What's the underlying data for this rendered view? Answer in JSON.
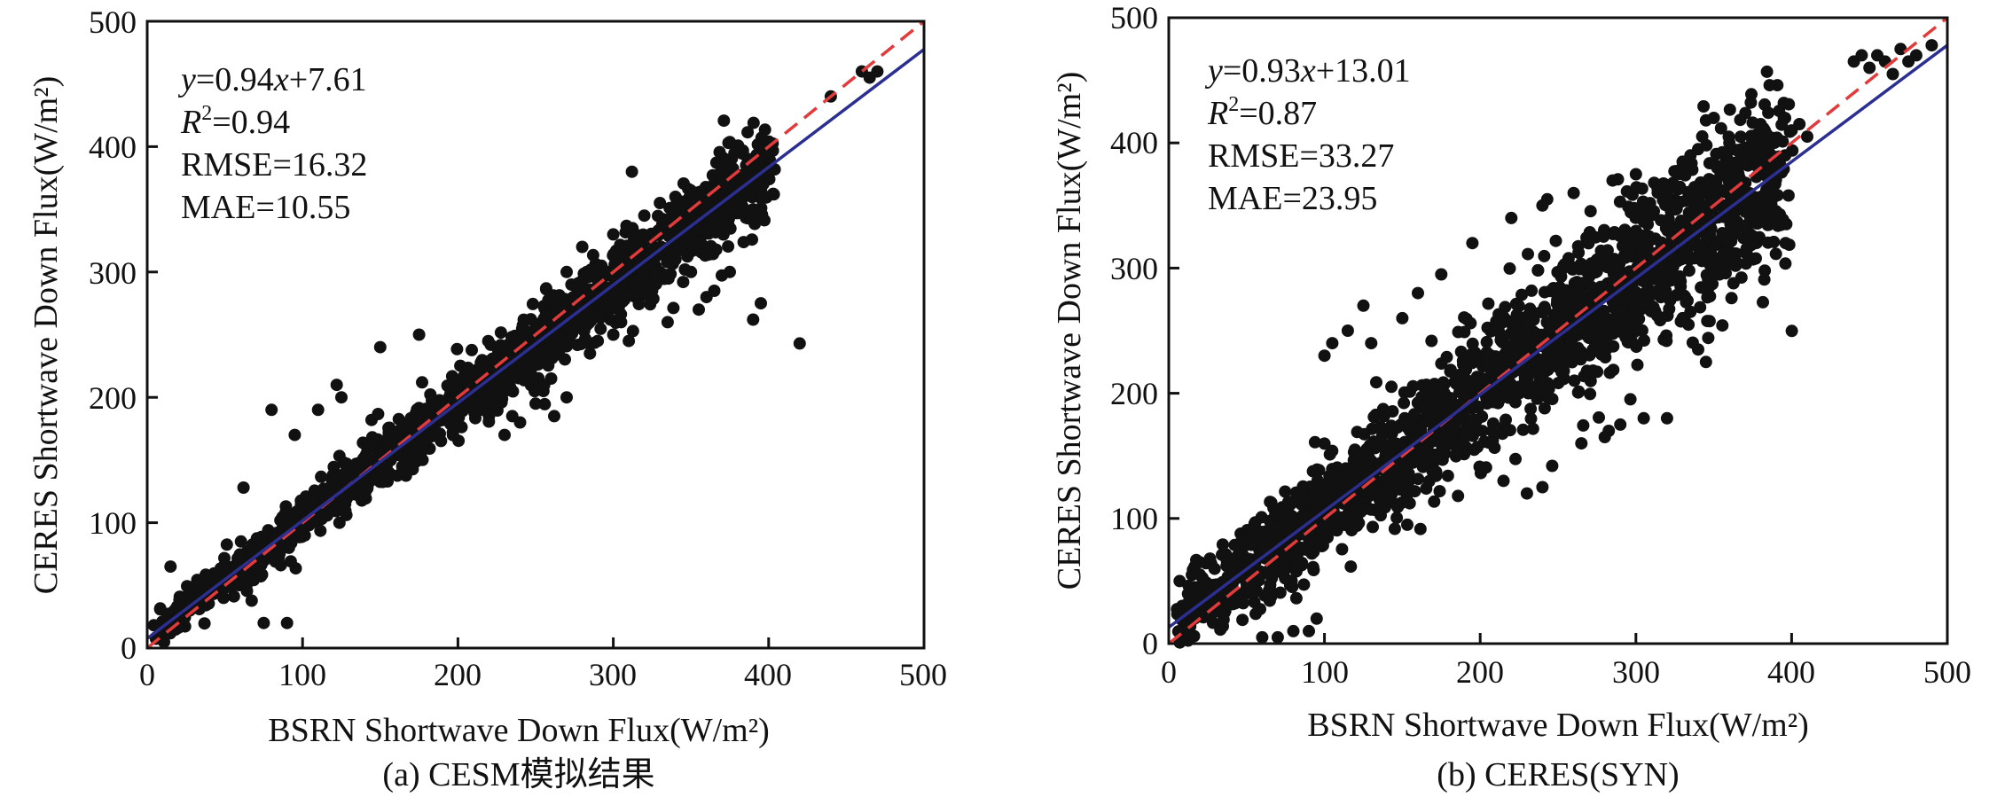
{
  "chart_data": [
    {
      "type": "scatter",
      "xlabel": "BSRN Shortwave Down Flux(W/m²)",
      "ylabel": "CERES Shortwave Down Flux(W/m²)",
      "caption": "(a) CESM模拟结果",
      "xlim": [
        0,
        500
      ],
      "ylim": [
        0,
        500
      ],
      "xticks": [
        "0",
        "100",
        "200",
        "300",
        "400",
        "500"
      ],
      "yticks": [
        "0",
        "100",
        "200",
        "300",
        "400",
        "500"
      ],
      "stats": {
        "eq_y": "y",
        "eq_rest": "=0.94",
        "eq_x": "x",
        "eq_tail": "+7.61",
        "r2_r": "R",
        "r2_sup": "2",
        "r2_val": "=0.94",
        "rmse": "RMSE=16.32",
        "mae": "MAE=10.55"
      },
      "fit": {
        "slope": 0.94,
        "intercept": 7.61,
        "color": "#2b2f8f"
      },
      "reference_line": {
        "slope": 1,
        "intercept": 0,
        "style": "dashed",
        "color": "#e23b3b"
      },
      "scatter": {
        "n": 1500,
        "spread": 13,
        "xmin": 5,
        "xmax": 400
      },
      "points": [
        [
          15,
          65
        ],
        [
          75,
          20
        ],
        [
          90,
          20
        ],
        [
          80,
          190
        ],
        [
          62,
          128
        ],
        [
          95,
          170
        ],
        [
          110,
          190
        ],
        [
          122,
          210
        ],
        [
          125,
          200
        ],
        [
          150,
          240
        ],
        [
          175,
          250
        ],
        [
          312,
          380
        ],
        [
          395,
          400
        ],
        [
          400,
          395
        ],
        [
          390,
          350
        ],
        [
          440,
          440
        ],
        [
          460,
          460
        ],
        [
          470,
          460
        ],
        [
          465,
          455
        ],
        [
          420,
          243
        ],
        [
          395,
          275
        ],
        [
          390,
          262
        ],
        [
          375,
          300
        ],
        [
          365,
          285
        ],
        [
          360,
          280
        ],
        [
          355,
          270
        ],
        [
          350,
          300
        ],
        [
          345,
          292
        ],
        [
          340,
          310
        ],
        [
          335,
          260
        ],
        [
          330,
          300
        ],
        [
          325,
          285
        ],
        [
          310,
          245
        ],
        [
          305,
          260
        ],
        [
          300,
          250
        ],
        [
          290,
          245
        ],
        [
          285,
          235
        ],
        [
          270,
          200
        ],
        [
          262,
          185
        ],
        [
          255,
          205
        ],
        [
          250,
          195
        ],
        [
          260,
          215
        ],
        [
          240,
          180
        ],
        [
          230,
          170
        ],
        [
          235,
          185
        ],
        [
          225,
          195
        ],
        [
          220,
          185
        ],
        [
          270,
          300
        ],
        [
          280,
          320
        ],
        [
          300,
          330
        ],
        [
          320,
          345
        ],
        [
          330,
          355
        ],
        [
          340,
          360
        ],
        [
          350,
          365
        ]
      ]
    },
    {
      "type": "scatter",
      "xlabel": "BSRN Shortwave Down Flux(W/m²)",
      "ylabel": "CERES Shortwave Down Flux(W/m²)",
      "caption": "(b) CERES(SYN)",
      "xlim": [
        0,
        500
      ],
      "ylim": [
        0,
        500
      ],
      "xticks": [
        "0",
        "100",
        "200",
        "300",
        "400",
        "500"
      ],
      "yticks": [
        "0",
        "100",
        "200",
        "300",
        "400",
        "500"
      ],
      "stats": {
        "eq_y": "y",
        "eq_rest": "=0.93",
        "eq_x": "x",
        "eq_tail": "+13.01",
        "r2_r": "R",
        "r2_sup": "2",
        "r2_val": "=0.87",
        "rmse": "RMSE=33.27",
        "mae": "MAE=23.95"
      },
      "fit": {
        "slope": 0.93,
        "intercept": 13.01,
        "color": "#2b2f8f"
      },
      "reference_line": {
        "slope": 1,
        "intercept": 0,
        "style": "dashed",
        "color": "#e23b3b"
      },
      "scatter": {
        "n": 2000,
        "spread": 27,
        "xmin": 5,
        "xmax": 395
      },
      "points": [
        [
          440,
          465
        ],
        [
          445,
          470
        ],
        [
          450,
          460
        ],
        [
          455,
          470
        ],
        [
          460,
          465
        ],
        [
          465,
          455
        ],
        [
          470,
          475
        ],
        [
          475,
          465
        ],
        [
          480,
          470
        ],
        [
          490,
          478
        ],
        [
          345,
          418
        ],
        [
          350,
          420
        ],
        [
          380,
          415
        ],
        [
          395,
          420
        ],
        [
          400,
          410
        ],
        [
          405,
          415
        ],
        [
          410,
          405
        ],
        [
          398,
          358
        ],
        [
          340,
          395
        ],
        [
          335,
          390
        ],
        [
          330,
          385
        ],
        [
          340,
          235
        ],
        [
          345,
          225
        ],
        [
          330,
          260
        ],
        [
          335,
          265
        ],
        [
          320,
          180
        ],
        [
          305,
          180
        ],
        [
          290,
          175
        ],
        [
          280,
          165
        ],
        [
          265,
          160
        ],
        [
          240,
          125
        ],
        [
          230,
          120
        ],
        [
          215,
          130
        ],
        [
          95,
          20
        ],
        [
          90,
          10
        ],
        [
          80,
          10
        ],
        [
          70,
          5
        ],
        [
          60,
          5
        ],
        [
          20,
          55
        ],
        [
          125,
          270
        ],
        [
          115,
          250
        ],
        [
          105,
          240
        ],
        [
          100,
          230
        ],
        [
          130,
          240
        ],
        [
          150,
          260
        ],
        [
          160,
          280
        ],
        [
          175,
          295
        ],
        [
          195,
          320
        ],
        [
          220,
          340
        ],
        [
          240,
          350
        ],
        [
          260,
          360
        ],
        [
          285,
          370
        ],
        [
          300,
          375
        ],
        [
          320,
          360
        ],
        [
          360,
          400
        ],
        [
          370,
          390
        ],
        [
          385,
          395
        ],
        [
          360,
          370
        ],
        [
          350,
          360
        ]
      ]
    }
  ]
}
